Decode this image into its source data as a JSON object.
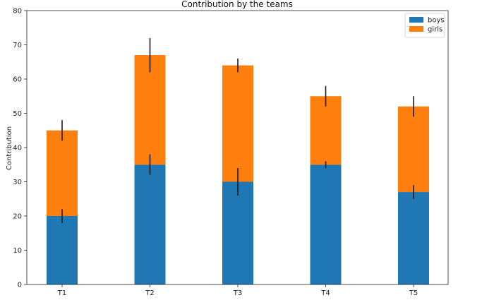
{
  "chart_data": {
    "type": "bar",
    "stacked": true,
    "title": "Contribution by the teams",
    "xlabel": "",
    "ylabel": "Contribution",
    "categories": [
      "T1",
      "T2",
      "T3",
      "T4",
      "T5"
    ],
    "ylim": [
      0,
      80
    ],
    "yticks": [
      0,
      10,
      20,
      30,
      40,
      50,
      60,
      70,
      80
    ],
    "grid": false,
    "legend_position": "top-right",
    "series": [
      {
        "name": "boys",
        "color": "#1f77b4",
        "values": [
          20,
          35,
          30,
          35,
          27
        ],
        "errors": [
          2,
          3,
          4,
          1,
          2
        ]
      },
      {
        "name": "girls",
        "color": "#ff7f0e",
        "values": [
          25,
          32,
          34,
          20,
          25
        ],
        "errors": [
          3,
          5,
          2,
          3,
          3
        ]
      }
    ]
  }
}
